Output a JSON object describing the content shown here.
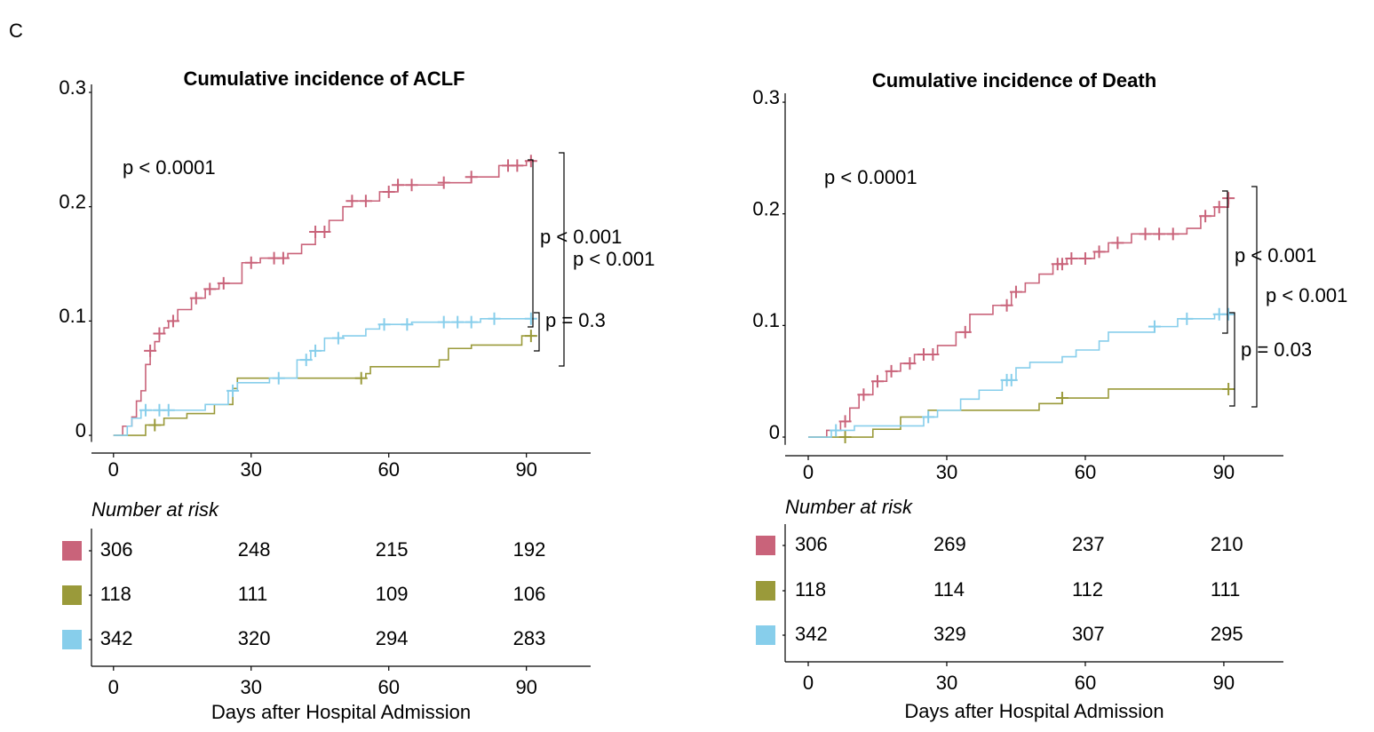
{
  "panel_label": "C",
  "chart_data": [
    {
      "type": "step",
      "title": "Cumulative incidence of ACLF",
      "xlim": [
        -4.8,
        104
      ],
      "ylim": [
        -0.0155,
        0.307
      ],
      "xticks": [
        0,
        30,
        60,
        90
      ],
      "yticks": [
        0,
        0.1,
        0.2,
        0.3
      ],
      "annotations": [
        "p < 0.0001",
        "p < 0.001",
        "p < 0.001",
        "p = 0.3"
      ],
      "series": [
        {
          "color": "#c9637a",
          "x": [
            0,
            2,
            4,
            5,
            6,
            7,
            8,
            9,
            10,
            11,
            12,
            14,
            17,
            20,
            23,
            28,
            32,
            38,
            41,
            44,
            47,
            50,
            52,
            58,
            62,
            72,
            78,
            84,
            90,
            92
          ],
          "values": [
            0,
            0.008,
            0.016,
            0.03,
            0.039,
            0.062,
            0.074,
            0.082,
            0.089,
            0.094,
            0.1,
            0.11,
            0.12,
            0.128,
            0.133,
            0.151,
            0.155,
            0.159,
            0.167,
            0.178,
            0.188,
            0.2,
            0.205,
            0.213,
            0.219,
            0.221,
            0.226,
            0.236,
            0.24,
            0.24
          ],
          "censor_x": [
            8,
            10,
            13,
            18,
            21,
            24,
            30,
            35,
            37,
            44,
            46,
            52,
            55,
            60,
            62,
            65,
            72,
            78,
            86,
            88,
            91
          ],
          "censor_values": [
            0.074,
            0.089,
            0.1,
            0.12,
            0.128,
            0.133,
            0.151,
            0.155,
            0.155,
            0.178,
            0.178,
            0.205,
            0.205,
            0.213,
            0.219,
            0.219,
            0.221,
            0.226,
            0.236,
            0.236,
            0.24
          ]
        },
        {
          "color": "#9a9a3a",
          "x": [
            0,
            7,
            11,
            16,
            22,
            26,
            27,
            55,
            56,
            71,
            73,
            78,
            89,
            92
          ],
          "values": [
            0,
            0.009,
            0.015,
            0.019,
            0.027,
            0.041,
            0.05,
            0.054,
            0.06,
            0.066,
            0.076,
            0.079,
            0.087,
            0.087
          ],
          "censor_x": [
            9,
            54,
            91
          ],
          "censor_values": [
            0.009,
            0.05,
            0.087
          ]
        },
        {
          "color": "#87ceeb",
          "x": [
            0,
            3,
            4,
            6,
            20,
            25,
            27,
            34,
            40,
            43,
            46,
            50,
            55,
            58,
            65,
            80,
            92
          ],
          "values": [
            0,
            0.008,
            0.015,
            0.022,
            0.027,
            0.039,
            0.046,
            0.05,
            0.066,
            0.074,
            0.085,
            0.087,
            0.093,
            0.097,
            0.099,
            0.102,
            0.102
          ],
          "censor_x": [
            7,
            10,
            12,
            26,
            36,
            42,
            44,
            49,
            59,
            64,
            72,
            75,
            78,
            83,
            91
          ],
          "censor_values": [
            0.022,
            0.022,
            0.022,
            0.039,
            0.05,
            0.066,
            0.074,
            0.085,
            0.097,
            0.097,
            0.099,
            0.099,
            0.099,
            0.102,
            0.102
          ]
        }
      ],
      "risk_table": {
        "title": "Number at risk",
        "xlabel": "Days after Hospital Admission",
        "rows": [
          [
            306,
            248,
            215,
            192
          ],
          [
            118,
            111,
            109,
            106
          ],
          [
            342,
            320,
            294,
            283
          ]
        ]
      }
    },
    {
      "type": "step",
      "title": "Cumulative incidence of Death",
      "xlim": [
        -5,
        102.9
      ],
      "ylim": [
        -0.0167,
        0.308
      ],
      "xticks": [
        0,
        30,
        60,
        90
      ],
      "yticks": [
        0,
        0.1,
        0.2,
        0.3
      ],
      "annotations": [
        "p < 0.0001",
        "p < 0.001",
        "p < 0.001",
        "p = 0.03"
      ],
      "series": [
        {
          "color": "#c9637a",
          "x": [
            0,
            4,
            7,
            9,
            11,
            14,
            17,
            20,
            23,
            28,
            32,
            35,
            40,
            44,
            47,
            50,
            53,
            56,
            62,
            65,
            70,
            82,
            85,
            88,
            91,
            92
          ],
          "values": [
            0,
            0.006,
            0.014,
            0.026,
            0.038,
            0.05,
            0.059,
            0.066,
            0.074,
            0.082,
            0.094,
            0.11,
            0.118,
            0.13,
            0.138,
            0.146,
            0.155,
            0.16,
            0.166,
            0.174,
            0.182,
            0.187,
            0.198,
            0.206,
            0.214,
            0.214
          ],
          "censor_x": [
            8,
            12,
            15,
            18,
            22,
            25,
            27,
            34,
            43,
            45,
            54,
            55,
            57,
            60,
            63,
            67,
            73,
            76,
            79,
            86,
            89,
            91
          ],
          "censor_values": [
            0.014,
            0.038,
            0.05,
            0.059,
            0.066,
            0.074,
            0.074,
            0.094,
            0.118,
            0.13,
            0.155,
            0.155,
            0.16,
            0.16,
            0.166,
            0.174,
            0.182,
            0.182,
            0.182,
            0.198,
            0.206,
            0.214
          ]
        },
        {
          "color": "#9a9a3a",
          "x": [
            0,
            8,
            14,
            20,
            26,
            50,
            55,
            65,
            92
          ],
          "values": [
            0,
            0,
            0.007,
            0.018,
            0.024,
            0.03,
            0.035,
            0.043,
            0.043
          ],
          "censor_x": [
            8,
            55,
            91
          ],
          "censor_values": [
            0,
            0.035,
            0.043
          ]
        },
        {
          "color": "#87ceeb",
          "x": [
            0,
            5,
            10,
            25,
            28,
            33,
            37,
            42,
            45,
            48,
            55,
            58,
            63,
            65,
            75,
            80,
            88,
            92
          ],
          "values": [
            0,
            0.006,
            0.01,
            0.018,
            0.024,
            0.034,
            0.042,
            0.051,
            0.062,
            0.067,
            0.072,
            0.078,
            0.086,
            0.094,
            0.099,
            0.106,
            0.11,
            0.11
          ],
          "censor_x": [
            6,
            26,
            43,
            44,
            75,
            82,
            89,
            91
          ],
          "censor_values": [
            0.006,
            0.018,
            0.051,
            0.051,
            0.099,
            0.106,
            0.11,
            0.11
          ]
        }
      ],
      "risk_table": {
        "title": "Number at risk",
        "xlabel": "Days after Hospital Admission",
        "rows": [
          [
            306,
            269,
            237,
            210
          ],
          [
            118,
            114,
            112,
            111
          ],
          [
            342,
            329,
            307,
            295
          ]
        ]
      }
    }
  ]
}
